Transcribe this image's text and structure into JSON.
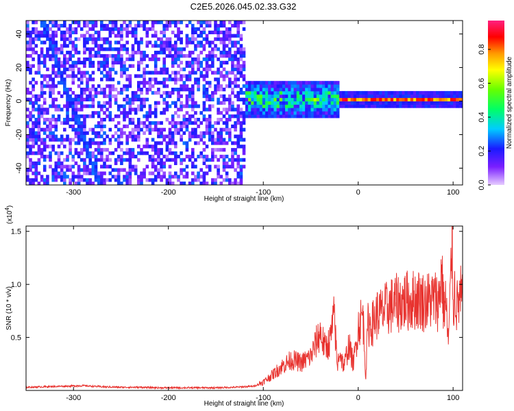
{
  "title": "C2E5.2026.045.02.33.G32",
  "chart_data": [
    {
      "type": "heatmap",
      "xlabel": "Height of straight line (km)",
      "ylabel": "Frequency (Hz)",
      "xlim": [
        -350,
        110
      ],
      "ylim": [
        -50,
        48
      ],
      "x_ticks": [
        -300,
        -200,
        -100,
        0,
        100
      ],
      "y_ticks": [
        -40,
        -20,
        0,
        20,
        40
      ],
      "colorbar": {
        "label": "Normalized spectral amplitude",
        "range": [
          0.0,
          0.97
        ],
        "ticks": [
          "0.0",
          "0.2",
          "0.4",
          "0.6",
          "0.8"
        ],
        "colors": [
          "#e6ccff",
          "#7a1fff",
          "#1a1aff",
          "#00ccff",
          "#00ff66",
          "#66ff00",
          "#ffff00",
          "#ff9900",
          "#ff0000",
          "#ff2080"
        ]
      },
      "regions": [
        {
          "x_range": [
            -350,
            -120
          ],
          "freq_range": [
            -50,
            48
          ],
          "amplitude": "low (0.05-0.3), broadband noise"
        },
        {
          "x_range": [
            -130,
            -20
          ],
          "freq_range": [
            -15,
            12
          ],
          "amplitude": "0.2-0.6 around 0 Hz"
        },
        {
          "x_range": [
            -20,
            110
          ],
          "freq_range": [
            -2,
            2
          ],
          "amplitude": "0.7-0.95 narrow line at 0 Hz"
        }
      ],
      "streaks": [
        {
          "x": [
            -335,
            -275
          ],
          "freq": [
            48,
            -50
          ],
          "amplitude": "~0.25"
        }
      ]
    },
    {
      "type": "line",
      "xlabel": "Height of straight line (km)",
      "ylabel": "SNR (10 * v/v)",
      "multiplier": "(x10^4)",
      "multiplier_base": "(x10",
      "multiplier_exp": "4",
      "xlim": [
        -350,
        110
      ],
      "ylim": [
        0,
        15500
      ],
      "x_ticks": [
        -300,
        -200,
        -100,
        0,
        100
      ],
      "y_ticks": [
        "0.5",
        "1.0",
        "1.5"
      ],
      "y_tick_values": [
        5000,
        10000,
        15000
      ],
      "series": [
        {
          "color": "#e8332f",
          "x": [
            -350,
            -330,
            -310,
            -290,
            -270,
            -250,
            -230,
            -210,
            -190,
            -170,
            -150,
            -130,
            -110,
            -100,
            -90,
            -80,
            -70,
            -60,
            -50,
            -40,
            -35,
            -30,
            -25,
            -22,
            -20,
            -15,
            -10,
            -5,
            0,
            5,
            8,
            10,
            15,
            20,
            25,
            30,
            35,
            40,
            45,
            50,
            55,
            60,
            65,
            70,
            75,
            80,
            85,
            88,
            90,
            92,
            95,
            97,
            99,
            100,
            102,
            104,
            106,
            108,
            110
          ],
          "y": [
            300,
            350,
            400,
            450,
            350,
            300,
            300,
            250,
            250,
            250,
            250,
            300,
            400,
            800,
            1500,
            2300,
            2900,
            2600,
            3200,
            5500,
            4000,
            4600,
            7000,
            2000,
            3800,
            2200,
            4300,
            2500,
            6000,
            7200,
            1200,
            6200,
            6300,
            7200,
            7300,
            7700,
            8000,
            8200,
            8300,
            8500,
            8400,
            8600,
            8600,
            8300,
            8500,
            8600,
            8400,
            11500,
            7800,
            8600,
            4500,
            8800,
            15500,
            8000,
            9500,
            7800,
            8400,
            8800,
            8300
          ]
        }
      ]
    }
  ]
}
